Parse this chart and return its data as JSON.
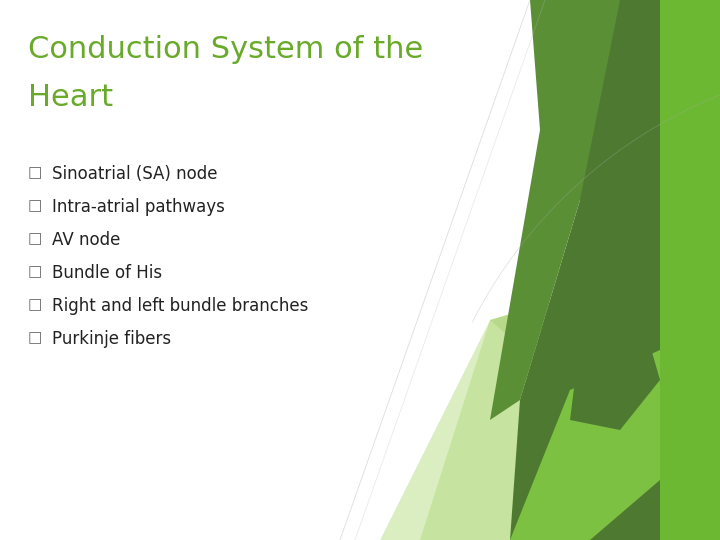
{
  "title_line1": "Conduction System of the",
  "title_line2": "Heart",
  "title_color": "#6aaa2a",
  "title_fontsize": 22,
  "bullet_items": [
    "Sinoatrial (SA) node",
    "Intra-atrial pathways",
    "AV node",
    "Bundle of His",
    "Right and left bundle branches",
    "Purkinje fibers"
  ],
  "bullet_color": "#222222",
  "bullet_fontsize": 12,
  "bullet_marker": "□",
  "bullet_marker_color": "#666666",
  "background_color": "#ffffff",
  "green_dark": "#4d7a30",
  "green_medium": "#5b8f35",
  "green_light": "#7dc142",
  "green_pale": "#b8d98a",
  "green_bright": "#6cb833",
  "figsize": [
    7.2,
    5.4
  ],
  "dpi": 100
}
